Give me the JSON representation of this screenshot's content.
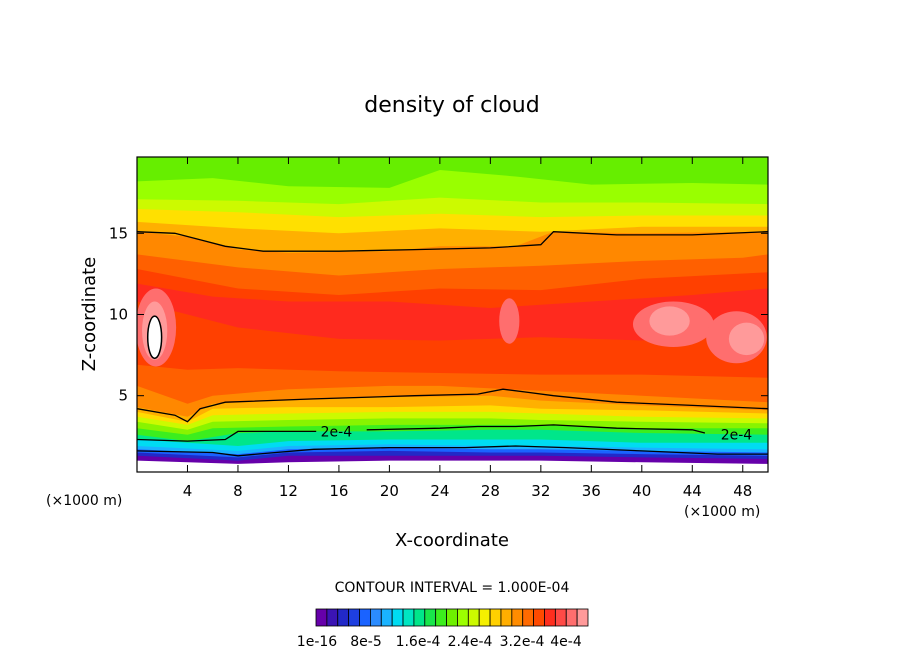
{
  "chart_data": {
    "type": "heatmap",
    "title": "density of cloud",
    "xlabel": "X-coordinate",
    "ylabel": "Z-coordinate",
    "x_unit_left": "(×1000 m)",
    "x_unit_right": "(×1000 m)",
    "xlim": [
      0,
      50
    ],
    "ylim": [
      0.3,
      19.7
    ],
    "x_ticks": [
      4,
      8,
      12,
      16,
      20,
      24,
      28,
      32,
      36,
      40,
      44,
      48
    ],
    "y_ticks": [
      5,
      10,
      15
    ],
    "contour_interval_label": "CONTOUR INTERVAL = 1.000E-04",
    "contour_labels": [
      {
        "text": "2e-4",
        "x": 15.8,
        "z": 2.8
      },
      {
        "text": "2e-4",
        "x": 47.5,
        "z": 2.6
      }
    ],
    "colorbar": {
      "colors": [
        "#6600aa",
        "#3b14b4",
        "#2229c8",
        "#1e3fe0",
        "#1a63ff",
        "#2b8cff",
        "#1ab3ff",
        "#00dcf2",
        "#00e6c2",
        "#00e68a",
        "#18e64b",
        "#3cee1e",
        "#6ef000",
        "#9cff00",
        "#ccfa00",
        "#f5f000",
        "#ffd000",
        "#ffae00",
        "#ff8c00",
        "#ff6a00",
        "#ff4a00",
        "#ff2e1e",
        "#ff4a46",
        "#ff6e6e",
        "#ff9a9a"
      ],
      "tick_labels": [
        "1e-16",
        "8e-5",
        "1.6e-4",
        "2.4e-4",
        "3.2e-4",
        "4e-4"
      ]
    },
    "bands": [
      {
        "top": [
          [
            0,
            19.7
          ],
          [
            50,
            19.7
          ]
        ],
        "color": "#66ee00"
      },
      {
        "top": [
          [
            0,
            18.2
          ],
          [
            6,
            18.4
          ],
          [
            12,
            17.9
          ],
          [
            20,
            17.8
          ],
          [
            24,
            18.9
          ],
          [
            30,
            18.5
          ],
          [
            36,
            18.0
          ],
          [
            44,
            18.1
          ],
          [
            50,
            18.0
          ]
        ],
        "color": "#99ff00"
      },
      {
        "top": [
          [
            0,
            17.1
          ],
          [
            8,
            17.0
          ],
          [
            16,
            16.8
          ],
          [
            24,
            17.2
          ],
          [
            32,
            16.9
          ],
          [
            40,
            16.9
          ],
          [
            50,
            16.8
          ]
        ],
        "color": "#ccfa00"
      },
      {
        "top": [
          [
            0,
            16.5
          ],
          [
            8,
            16.3
          ],
          [
            16,
            16.0
          ],
          [
            24,
            16.2
          ],
          [
            32,
            16.0
          ],
          [
            40,
            16.1
          ],
          [
            50,
            16.1
          ]
        ],
        "color": "#ffe000"
      },
      {
        "top": [
          [
            0,
            15.7
          ],
          [
            8,
            15.3
          ],
          [
            16,
            15.0
          ],
          [
            24,
            15.3
          ],
          [
            32,
            15.1
          ],
          [
            40,
            15.4
          ],
          [
            50,
            15.4
          ]
        ],
        "color": "#ffb000"
      },
      {
        "top": [
          [
            0,
            15.1
          ],
          [
            4,
            14.8
          ],
          [
            8,
            14.0
          ],
          [
            12,
            13.8
          ],
          [
            20,
            13.9
          ],
          [
            24,
            14.2
          ],
          [
            30,
            14.2
          ],
          [
            33,
            15.1
          ],
          [
            40,
            15.0
          ],
          [
            50,
            15.1
          ]
        ],
        "color": "#ff8800"
      },
      {
        "top": [
          [
            0,
            13.7
          ],
          [
            4,
            13.3
          ],
          [
            8,
            12.9
          ],
          [
            16,
            12.4
          ],
          [
            24,
            12.8
          ],
          [
            32,
            13.0
          ],
          [
            40,
            13.3
          ],
          [
            48,
            13.5
          ],
          [
            50,
            13.7
          ]
        ],
        "color": "#ff6000"
      },
      {
        "top": [
          [
            0,
            12.8
          ],
          [
            4,
            12.2
          ],
          [
            8,
            11.6
          ],
          [
            16,
            11.2
          ],
          [
            24,
            11.6
          ],
          [
            32,
            11.5
          ],
          [
            40,
            12.2
          ],
          [
            50,
            12.6
          ]
        ],
        "color": "#ff4000"
      },
      {
        "top": [
          [
            0,
            11.9
          ],
          [
            6,
            11.1
          ],
          [
            12,
            10.8
          ],
          [
            20,
            10.8
          ],
          [
            28,
            10.4
          ],
          [
            36,
            10.8
          ],
          [
            44,
            11.2
          ],
          [
            50,
            11.6
          ]
        ],
        "color": "#ff2a1e"
      },
      {
        "top": [
          [
            0,
            10.8
          ],
          [
            8,
            9.2
          ],
          [
            16,
            8.5
          ],
          [
            24,
            8.4
          ],
          [
            32,
            8.6
          ],
          [
            40,
            8.4
          ],
          [
            50,
            8.9
          ]
        ],
        "color": "#ff4000"
      },
      {
        "top": [
          [
            0,
            6.9
          ],
          [
            4,
            6.6
          ],
          [
            8,
            6.7
          ],
          [
            16,
            6.5
          ],
          [
            24,
            6.4
          ],
          [
            32,
            6.3
          ],
          [
            40,
            6.3
          ],
          [
            50,
            6.1
          ]
        ],
        "color": "#ff6000"
      },
      {
        "top": [
          [
            0,
            5.6
          ],
          [
            4,
            4.5
          ],
          [
            6,
            5.0
          ],
          [
            12,
            5.4
          ],
          [
            20,
            5.6
          ],
          [
            24,
            5.6
          ],
          [
            32,
            5.3
          ],
          [
            40,
            5.0
          ],
          [
            50,
            4.6
          ]
        ],
        "color": "#ff8800"
      },
      {
        "top": [
          [
            0,
            4.3
          ],
          [
            4,
            3.7
          ],
          [
            6,
            4.5
          ],
          [
            12,
            4.7
          ],
          [
            20,
            4.9
          ],
          [
            28,
            5.0
          ],
          [
            32,
            4.7
          ],
          [
            40,
            4.4
          ],
          [
            50,
            4.1
          ]
        ],
        "color": "#ffb000"
      },
      {
        "top": [
          [
            0,
            4.0
          ],
          [
            4,
            3.4
          ],
          [
            6,
            4.2
          ],
          [
            12,
            4.3
          ],
          [
            20,
            4.3
          ],
          [
            28,
            4.4
          ],
          [
            32,
            4.2
          ],
          [
            40,
            4.1
          ],
          [
            50,
            3.9
          ]
        ],
        "color": "#ffdc00"
      },
      {
        "top": [
          [
            0,
            3.7
          ],
          [
            4,
            3.2
          ],
          [
            6,
            3.8
          ],
          [
            12,
            3.9
          ],
          [
            20,
            4.0
          ],
          [
            28,
            4.0
          ],
          [
            32,
            3.9
          ],
          [
            40,
            3.7
          ],
          [
            50,
            3.6
          ]
        ],
        "color": "#ccfa00"
      },
      {
        "top": [
          [
            0,
            3.4
          ],
          [
            4,
            2.9
          ],
          [
            6,
            3.4
          ],
          [
            12,
            3.5
          ],
          [
            20,
            3.6
          ],
          [
            28,
            3.6
          ],
          [
            32,
            3.5
          ],
          [
            40,
            3.4
          ],
          [
            50,
            3.3
          ]
        ],
        "color": "#88f400"
      },
      {
        "top": [
          [
            0,
            3.0
          ],
          [
            4,
            2.6
          ],
          [
            6,
            3.0
          ],
          [
            12,
            3.1
          ],
          [
            20,
            3.2
          ],
          [
            28,
            3.2
          ],
          [
            32,
            3.2
          ],
          [
            40,
            3.0
          ],
          [
            50,
            3.0
          ]
        ],
        "color": "#3cee1e"
      },
      {
        "top": [
          [
            0,
            2.6
          ],
          [
            4,
            2.2
          ],
          [
            8,
            2.7
          ],
          [
            12,
            2.8
          ],
          [
            20,
            2.8
          ],
          [
            28,
            2.9
          ],
          [
            32,
            2.9
          ],
          [
            40,
            2.7
          ],
          [
            50,
            2.6
          ]
        ],
        "color": "#00e68a"
      },
      {
        "top": [
          [
            0,
            2.3
          ],
          [
            8,
            1.9
          ],
          [
            12,
            2.2
          ],
          [
            20,
            2.3
          ],
          [
            28,
            2.3
          ],
          [
            32,
            2.3
          ],
          [
            40,
            2.1
          ],
          [
            50,
            2.1
          ]
        ],
        "color": "#00dcf2"
      },
      {
        "top": [
          [
            0,
            1.9
          ],
          [
            8,
            1.6
          ],
          [
            12,
            1.9
          ],
          [
            20,
            2.0
          ],
          [
            28,
            1.9
          ],
          [
            32,
            1.9
          ],
          [
            40,
            1.8
          ],
          [
            50,
            1.7
          ]
        ],
        "color": "#1ab3ff"
      },
      {
        "top": [
          [
            0,
            1.7
          ],
          [
            8,
            1.4
          ],
          [
            12,
            1.7
          ],
          [
            20,
            1.8
          ],
          [
            28,
            1.7
          ],
          [
            32,
            1.7
          ],
          [
            40,
            1.6
          ],
          [
            50,
            1.5
          ]
        ],
        "color": "#1a63ff"
      },
      {
        "top": [
          [
            0,
            1.5
          ],
          [
            8,
            1.2
          ],
          [
            12,
            1.5
          ],
          [
            20,
            1.6
          ],
          [
            28,
            1.5
          ],
          [
            32,
            1.5
          ],
          [
            40,
            1.4
          ],
          [
            50,
            1.3
          ]
        ],
        "color": "#2229c8"
      },
      {
        "top": [
          [
            0,
            1.3
          ],
          [
            8,
            1.0
          ],
          [
            12,
            1.3
          ],
          [
            20,
            1.3
          ],
          [
            28,
            1.3
          ],
          [
            32,
            1.3
          ],
          [
            40,
            1.2
          ],
          [
            50,
            1.1
          ]
        ],
        "color": "#6600aa"
      },
      {
        "top": [
          [
            0,
            1.0
          ],
          [
            8,
            0.8
          ],
          [
            12,
            0.9
          ],
          [
            20,
            1.0
          ],
          [
            28,
            1.0
          ],
          [
            32,
            1.0
          ],
          [
            40,
            0.9
          ],
          [
            50,
            0.8
          ]
        ],
        "color": "#ffffff"
      }
    ],
    "blobs": [
      {
        "cx": 1.5,
        "cz": 9.2,
        "rx": 1.6,
        "rz": 2.4,
        "color": "#ff6e6e"
      },
      {
        "cx": 1.4,
        "cz": 9.0,
        "rx": 1.0,
        "rz": 1.8,
        "color": "#ff9a9a"
      },
      {
        "cx": 1.4,
        "cz": 8.6,
        "rx": 0.55,
        "rz": 1.3,
        "color": "#ffffff",
        "stroke": true
      },
      {
        "cx": 42.5,
        "cz": 9.4,
        "rx": 3.2,
        "rz": 1.4,
        "color": "#ff6e6e"
      },
      {
        "cx": 42.2,
        "cz": 9.6,
        "rx": 1.6,
        "rz": 0.9,
        "color": "#ff9a9a"
      },
      {
        "cx": 47.5,
        "cz": 8.6,
        "rx": 2.4,
        "rz": 1.6,
        "color": "#ff6e6e"
      },
      {
        "cx": 48.3,
        "cz": 8.5,
        "rx": 1.4,
        "rz": 1.0,
        "color": "#ff9a9a"
      },
      {
        "cx": 29.5,
        "cz": 9.6,
        "rx": 0.8,
        "rz": 1.4,
        "color": "#ff6e6e"
      }
    ],
    "contour_lines": [
      [
        [
          0,
          15.1
        ],
        [
          3,
          15.0
        ],
        [
          5,
          14.6
        ],
        [
          7,
          14.2
        ],
        [
          10,
          13.9
        ],
        [
          16,
          13.9
        ],
        [
          22,
          14.0
        ],
        [
          28,
          14.1
        ],
        [
          32,
          14.3
        ],
        [
          33,
          15.1
        ],
        [
          38,
          14.9
        ],
        [
          44,
          14.9
        ],
        [
          50,
          15.1
        ]
      ],
      [
        [
          0,
          4.2
        ],
        [
          3,
          3.8
        ],
        [
          4,
          3.4
        ],
        [
          5,
          4.2
        ],
        [
          7,
          4.6
        ],
        [
          14,
          4.8
        ],
        [
          22,
          5.0
        ],
        [
          27,
          5.1
        ],
        [
          29,
          5.4
        ],
        [
          31,
          5.2
        ],
        [
          33,
          5.0
        ],
        [
          38,
          4.6
        ],
        [
          44,
          4.4
        ],
        [
          50,
          4.2
        ]
      ],
      [
        [
          0,
          2.3
        ],
        [
          4,
          2.2
        ],
        [
          7,
          2.3
        ],
        [
          8,
          2.8
        ],
        [
          13,
          2.8
        ],
        [
          14.2,
          2.8
        ]
      ],
      [
        [
          18.2,
          2.9
        ],
        [
          24,
          3.0
        ],
        [
          27,
          3.1
        ],
        [
          30,
          3.1
        ],
        [
          33,
          3.2
        ],
        [
          38,
          3.0
        ],
        [
          44,
          2.9
        ],
        [
          45,
          2.7
        ]
      ],
      [
        [
          0,
          1.6
        ],
        [
          6,
          1.5
        ],
        [
          8,
          1.3
        ],
        [
          11,
          1.5
        ],
        [
          14,
          1.7
        ],
        [
          20,
          1.8
        ],
        [
          26,
          1.8
        ],
        [
          30,
          1.9
        ],
        [
          34,
          1.8
        ],
        [
          40,
          1.6
        ],
        [
          46,
          1.4
        ],
        [
          50,
          1.4
        ]
      ]
    ]
  }
}
